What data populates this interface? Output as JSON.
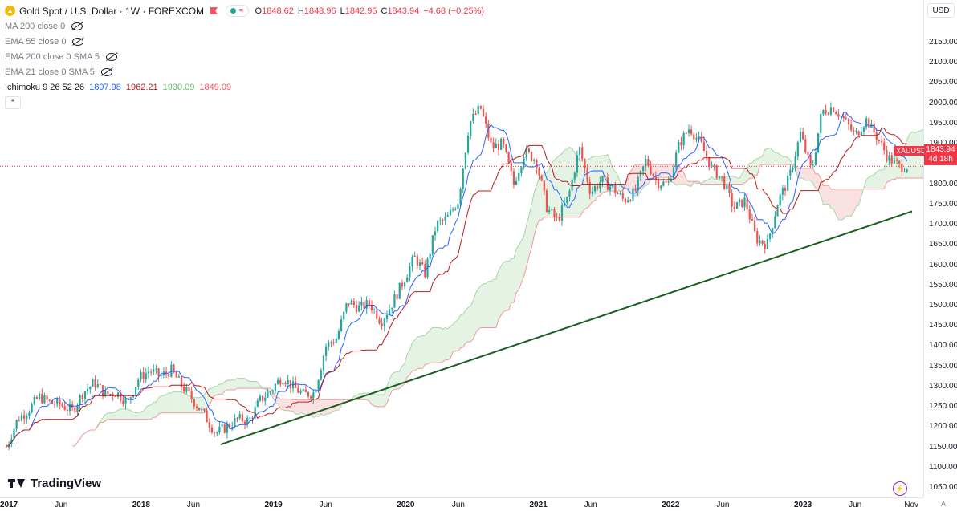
{
  "header": {
    "title": "Gold Spot / U.S. Dollar · 1W · FOREXCOM",
    "ohlc": [
      {
        "k": "O",
        "v": "1848.62"
      },
      {
        "k": "H",
        "v": "1848.96"
      },
      {
        "k": "L",
        "v": "1842.95"
      },
      {
        "k": "C",
        "v": "1843.94"
      },
      {
        "k": "",
        "v": "−4.68 (−0.25%)"
      }
    ],
    "indicators": [
      {
        "label": "MA 200 close 0"
      },
      {
        "label": "EMA 55 close 0"
      },
      {
        "label": "EMA 200 close 0 SMA 5"
      },
      {
        "label": "EMA 21 close 0 SMA 5"
      }
    ],
    "ichimoku": {
      "label": "Ichimoku 9 26 52 26",
      "v1": "1897.98",
      "v2": "1962.21",
      "v3": "1930.09",
      "v4": "1849.09"
    }
  },
  "currency": "USD",
  "last_price": {
    "value": "1843.94",
    "countdown": "4d 18h",
    "symbol": "XAUUSD"
  },
  "branding": "TradingView",
  "auto_label": "A",
  "colors": {
    "up": "#26a69a",
    "down": "#ef5350",
    "tenkan": "#2962ff",
    "kijun": "#b71c1c",
    "cloud_green": "#a5d6a7",
    "cloud_red": "#ef9a9a",
    "trendline": "#1b5e20",
    "last": "#f23645"
  },
  "chart_data": {
    "type": "candlestick",
    "title": "Gold Spot / U.S. Dollar · 1W · FOREXCOM",
    "xlabel": "",
    "ylabel": "",
    "ylim": [
      1030,
      2170
    ],
    "y_ticks": [
      1050,
      1100,
      1150,
      1200,
      1250,
      1300,
      1350,
      1400,
      1450,
      1500,
      1550,
      1600,
      1650,
      1700,
      1750,
      1800,
      1850,
      1900,
      1950,
      2000,
      2050,
      2100,
      2150
    ],
    "x_range": [
      "2017-01-01",
      "2023-11-05"
    ],
    "x_ticks": [
      {
        "label": "2017",
        "date": "2017-01-01",
        "year": true
      },
      {
        "label": "Jun",
        "date": "2017-06-01",
        "year": false
      },
      {
        "label": "2018",
        "date": "2018-01-01",
        "year": true
      },
      {
        "label": "Jun",
        "date": "2018-06-01",
        "year": false
      },
      {
        "label": "2019",
        "date": "2019-01-01",
        "year": true
      },
      {
        "label": "Jun",
        "date": "2019-06-01",
        "year": false
      },
      {
        "label": "2020",
        "date": "2020-01-01",
        "year": true
      },
      {
        "label": "Jun",
        "date": "2020-06-01",
        "year": false
      },
      {
        "label": "2021",
        "date": "2021-01-01",
        "year": true
      },
      {
        "label": "Jun",
        "date": "2021-06-01",
        "year": false
      },
      {
        "label": "2022",
        "date": "2022-01-01",
        "year": true
      },
      {
        "label": "Jun",
        "date": "2022-06-01",
        "year": false
      },
      {
        "label": "2023",
        "date": "2023-01-01",
        "year": true
      },
      {
        "label": "Jun",
        "date": "2023-06-01",
        "year": false
      },
      {
        "label": "Nov",
        "date": "2023-11-01",
        "year": false
      }
    ],
    "price_path": [
      [
        "2017-01-01",
        1150
      ],
      [
        "2017-02-01",
        1220
      ],
      [
        "2017-03-01",
        1240
      ],
      [
        "2017-04-01",
        1275
      ],
      [
        "2017-05-01",
        1260
      ],
      [
        "2017-06-01",
        1255
      ],
      [
        "2017-07-01",
        1240
      ],
      [
        "2017-08-01",
        1285
      ],
      [
        "2017-09-01",
        1310
      ],
      [
        "2017-10-01",
        1280
      ],
      [
        "2017-11-01",
        1285
      ],
      [
        "2017-12-01",
        1260
      ],
      [
        "2018-01-01",
        1320
      ],
      [
        "2018-02-01",
        1340
      ],
      [
        "2018-03-01",
        1325
      ],
      [
        "2018-04-01",
        1340
      ],
      [
        "2018-05-01",
        1300
      ],
      [
        "2018-06-01",
        1265
      ],
      [
        "2018-07-01",
        1230
      ],
      [
        "2018-08-01",
        1185
      ],
      [
        "2018-09-01",
        1200
      ],
      [
        "2018-10-01",
        1220
      ],
      [
        "2018-11-01",
        1215
      ],
      [
        "2018-12-01",
        1265
      ],
      [
        "2019-01-01",
        1290
      ],
      [
        "2019-02-01",
        1325
      ],
      [
        "2019-03-01",
        1300
      ],
      [
        "2019-04-01",
        1280
      ],
      [
        "2019-05-01",
        1285
      ],
      [
        "2019-06-01",
        1400
      ],
      [
        "2019-07-01",
        1420
      ],
      [
        "2019-08-01",
        1510
      ],
      [
        "2019-09-01",
        1495
      ],
      [
        "2019-10-01",
        1505
      ],
      [
        "2019-11-01",
        1460
      ],
      [
        "2019-12-01",
        1505
      ],
      [
        "2020-01-01",
        1560
      ],
      [
        "2020-02-01",
        1620
      ],
      [
        "2020-03-01",
        1580
      ],
      [
        "2020-04-01",
        1700
      ],
      [
        "2020-05-01",
        1715
      ],
      [
        "2020-06-01",
        1760
      ],
      [
        "2020-07-01",
        1950
      ],
      [
        "2020-08-01",
        1990
      ],
      [
        "2020-09-01",
        1890
      ],
      [
        "2020-10-01",
        1900
      ],
      [
        "2020-11-01",
        1800
      ],
      [
        "2020-12-01",
        1880
      ],
      [
        "2021-01-01",
        1860
      ],
      [
        "2021-02-01",
        1740
      ],
      [
        "2021-03-01",
        1710
      ],
      [
        "2021-04-01",
        1770
      ],
      [
        "2021-05-01",
        1890
      ],
      [
        "2021-06-01",
        1780
      ],
      [
        "2021-07-01",
        1810
      ],
      [
        "2021-08-01",
        1790
      ],
      [
        "2021-09-01",
        1760
      ],
      [
        "2021-10-01",
        1780
      ],
      [
        "2021-11-01",
        1860
      ],
      [
        "2021-12-01",
        1805
      ],
      [
        "2022-01-01",
        1800
      ],
      [
        "2022-02-01",
        1900
      ],
      [
        "2022-03-01",
        1940
      ],
      [
        "2022-04-01",
        1900
      ],
      [
        "2022-05-01",
        1840
      ],
      [
        "2022-06-01",
        1810
      ],
      [
        "2022-07-01",
        1740
      ],
      [
        "2022-08-01",
        1760
      ],
      [
        "2022-09-01",
        1665
      ],
      [
        "2022-10-01",
        1650
      ],
      [
        "2022-11-01",
        1760
      ],
      [
        "2022-12-01",
        1815
      ],
      [
        "2023-01-01",
        1925
      ],
      [
        "2023-02-01",
        1830
      ],
      [
        "2023-03-01",
        1980
      ],
      [
        "2023-04-01",
        1990
      ],
      [
        "2023-05-01",
        1960
      ],
      [
        "2023-06-01",
        1920
      ],
      [
        "2023-07-01",
        1960
      ],
      [
        "2023-08-01",
        1915
      ],
      [
        "2023-09-01",
        1865
      ],
      [
        "2023-10-01",
        1843.94
      ]
    ],
    "trendline": [
      [
        "2018-08-15",
        1157
      ],
      [
        "2023-11-05",
        1733
      ]
    ]
  }
}
